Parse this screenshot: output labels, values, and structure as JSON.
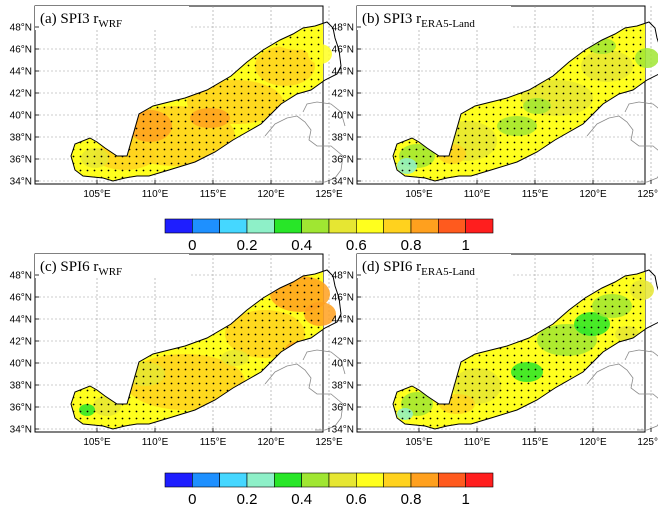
{
  "panels": [
    {
      "title": "(a) SPI3 r",
      "subscript": "WRF",
      "pattern": "wrf3"
    },
    {
      "title": "(b) SPI3 r",
      "subscript": "ERA5-Land",
      "pattern": "era3"
    },
    {
      "title": "(c) SPI6 r",
      "subscript": "WRF",
      "pattern": "wrf6"
    },
    {
      "title": "(d) SPI6 r",
      "subscript": "ERA5-Land",
      "pattern": "era6"
    }
  ],
  "map": {
    "lat_ticks": [
      "34°N",
      "36°N",
      "38°N",
      "40°N",
      "42°N",
      "44°N",
      "46°N",
      "48°N"
    ],
    "lon_ticks": [
      "105°E",
      "110°E",
      "115°E",
      "120°E",
      "125°E"
    ],
    "lon_range": [
      100,
      127
    ],
    "lat_range": [
      33,
      49
    ]
  },
  "colorbar": {
    "labels": [
      "0",
      "0.2",
      "0.4",
      "0.6",
      "0.8",
      "1"
    ],
    "range": [
      0,
      1
    ],
    "bins": 12,
    "colors": [
      "#1e1eff",
      "#1e90ff",
      "#45d7ff",
      "#8ef0c8",
      "#28e628",
      "#a0e632",
      "#e6e632",
      "#ffff1e",
      "#ffd21e",
      "#ffa01e",
      "#ff5a1e",
      "#ff1e1e"
    ]
  }
}
